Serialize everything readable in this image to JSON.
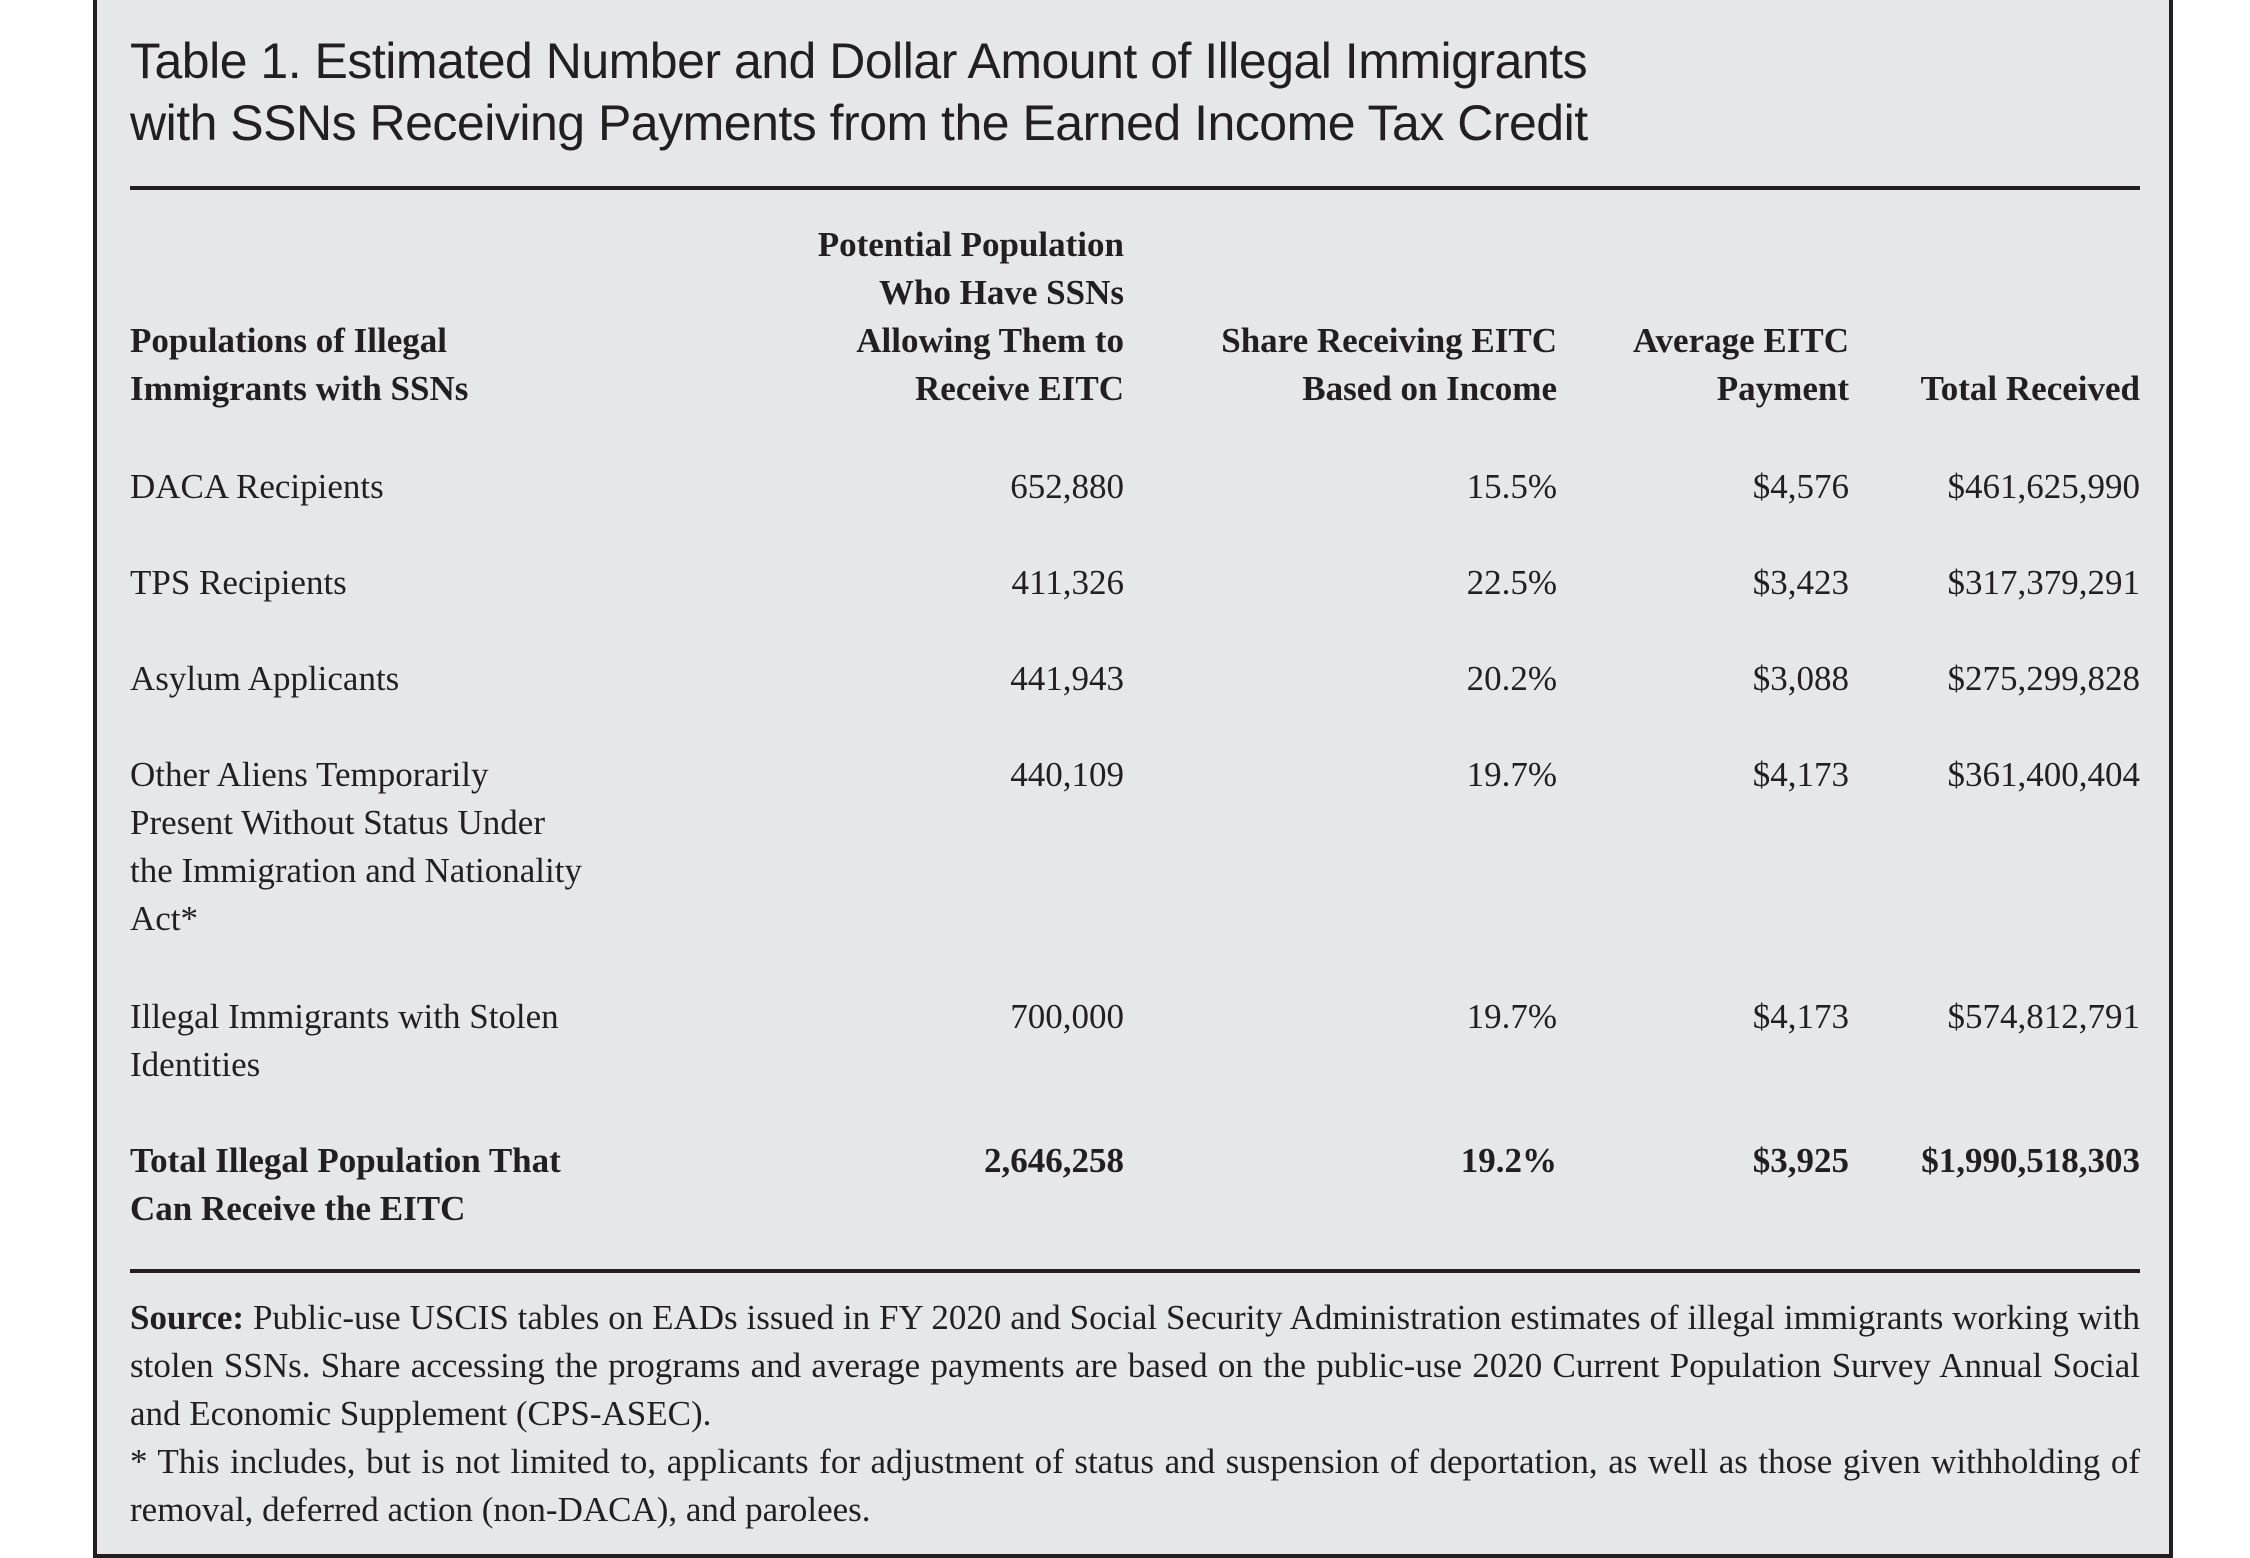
{
  "title": {
    "line1": "Table 1. Estimated Number and Dollar Amount of Illegal Immigrants",
    "line2": "with SSNs Receiving Payments from the Earned Income Tax Credit"
  },
  "table": {
    "headers": [
      [
        "Populations of Illegal",
        "Immigrants with SSNs"
      ],
      [
        "Potential Population",
        "Who Have SSNs",
        "Allowing Them to",
        "Receive EITC"
      ],
      [
        "Share Receiving EITC",
        "Based on Income"
      ],
      [
        "Average EITC",
        "Payment"
      ],
      [
        "Total Received"
      ]
    ],
    "rows": [
      {
        "label": [
          "DACA Recipients"
        ],
        "population": "652,880",
        "share": "15.5%",
        "avg": "$4,576",
        "total": "$461,625,990"
      },
      {
        "label": [
          "TPS Recipients"
        ],
        "population": "411,326",
        "share": "22.5%",
        "avg": "$3,423",
        "total": "$317,379,291"
      },
      {
        "label": [
          "Asylum Applicants"
        ],
        "population": "441,943",
        "share": "20.2%",
        "avg": "$3,088",
        "total": "$275,299,828"
      },
      {
        "label": [
          "Other Aliens Temporarily",
          "Present Without Status Under",
          "the Immigration and Nationality",
          "Act*"
        ],
        "population": "440,109",
        "share": "19.7%",
        "avg": "$4,173",
        "total": "$361,400,404"
      },
      {
        "label": [
          "Illegal Immigrants with Stolen",
          "Identities"
        ],
        "population": "700,000",
        "share": "19.7%",
        "avg": "$4,173",
        "total": "$574,812,791"
      }
    ],
    "total_row": {
      "label": [
        "Total Illegal Population That",
        "Can Receive the EITC"
      ],
      "population": "2,646,258",
      "share": "19.2%",
      "avg": "$3,925",
      "total": "$1,990,518,303"
    }
  },
  "notes": {
    "source_label": "Source:",
    "source_text": " Public-use USCIS tables on EADs issued in FY 2020 and Social Security Administration estimates of illegal immigrants working with stolen SSNs. Share accessing the programs and average payments are based on the public-use 2020 Current Population Survey Annual Social and Economic Supplement (CPS-ASEC).",
    "footnote": "* This includes, but is not limited to, applicants for adjustment of status and suspension of deportation, as well as those given withholding of removal, deferred action (non-DACA), and parolees."
  },
  "colors": {
    "background": "#e6e7e9",
    "ink": "#231f20"
  }
}
